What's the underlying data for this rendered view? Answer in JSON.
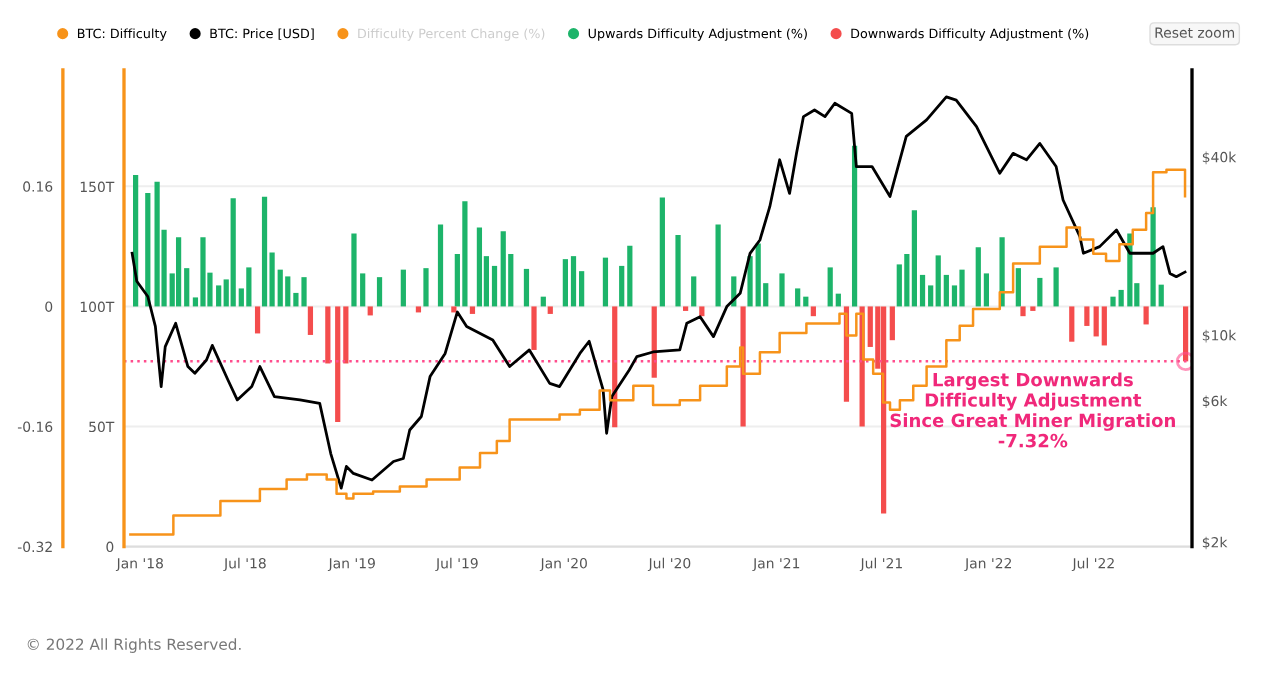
{
  "chart_data": {
    "type": "bar",
    "legend": "top",
    "grid": "y",
    "log": "y2",
    "xlim": [
      "2017-12-04",
      "2022-12-17"
    ],
    "xticks": [
      {
        "value": "2018-01-01",
        "label": "Jan '18"
      },
      {
        "value": "2018-07-01",
        "label": "Jul '18"
      },
      {
        "value": "2019-01-01",
        "label": "Jan '19"
      },
      {
        "value": "2019-07-01",
        "label": "Jul '19"
      },
      {
        "value": "2020-01-01",
        "label": "Jan '20"
      },
      {
        "value": "2020-07-01",
        "label": "Jul '20"
      },
      {
        "value": "2021-01-01",
        "label": "Jan '21"
      },
      {
        "value": "2021-07-01",
        "label": "Jul '21"
      },
      {
        "value": "2022-01-01",
        "label": "Jan '22"
      },
      {
        "value": "2022-07-01",
        "label": "Jul '22"
      }
    ],
    "ylim": [
      -0.32,
      0.315
    ],
    "yticks": [
      -0.32,
      -0.16,
      0,
      0.16
    ],
    "y2lim": [
      1930,
      78600
    ],
    "y2ticks": [
      {
        "value": 2000,
        "label": "$2k"
      },
      {
        "value": 6000,
        "label": "$6k"
      },
      {
        "value": 10000,
        "label": "$10k"
      },
      {
        "value": 40000,
        "label": "$40k"
      }
    ],
    "y3lim": [
      0,
      198.6
    ],
    "y3ticks": [
      {
        "value": 0,
        "label": "0"
      },
      {
        "value": 50,
        "label": "50T"
      },
      {
        "value": 100,
        "label": "100T"
      },
      {
        "value": 150,
        "label": "150T"
      }
    ],
    "series": [
      {
        "name": "BTC: Difficulty",
        "type": "step",
        "axis": "y3",
        "color": "#f7931a",
        "x": [
          "2017-12-15",
          "2018-02-27",
          "2018-05-19",
          "2018-07-26",
          "2018-09-10",
          "2018-10-15",
          "2018-11-18",
          "2018-12-05",
          "2018-12-22",
          "2019-01-03",
          "2019-02-06",
          "2019-03-24",
          "2019-05-09",
          "2019-07-05",
          "2019-08-09",
          "2019-09-07",
          "2019-09-29",
          "2019-11-09",
          "2019-12-24",
          "2020-01-28",
          "2020-03-02",
          "2020-03-20",
          "2020-04-29",
          "2020-06-02",
          "2020-07-18",
          "2020-08-22",
          "2020-10-07",
          "2020-10-30",
          "2020-11-04",
          "2020-12-03",
          "2021-01-06",
          "2021-02-21",
          "2021-04-19",
          "2021-05-01",
          "2021-05-18",
          "2021-05-30",
          "2021-06-16",
          "2021-07-03",
          "2021-07-15",
          "2021-08-01",
          "2021-08-24",
          "2021-09-16",
          "2021-10-20",
          "2021-11-12",
          "2021-12-05",
          "2022-01-20",
          "2022-02-12",
          "2022-03-30",
          "2022-05-15",
          "2022-06-07",
          "2022-06-30",
          "2022-07-22",
          "2022-08-14",
          "2022-09-06",
          "2022-09-29",
          "2022-10-11",
          "2022-11-03",
          "2022-11-26",
          "2022-12-05"
        ],
        "values": [
          5,
          13,
          19,
          24,
          28,
          30,
          28,
          22,
          20,
          22,
          23,
          25,
          28,
          33,
          39,
          44,
          53,
          53,
          55,
          57,
          65,
          61,
          67,
          59,
          61,
          67,
          75,
          83,
          72,
          81,
          89,
          93,
          97,
          88,
          97,
          78,
          72,
          60,
          57,
          61,
          67,
          75,
          86,
          92,
          99,
          106,
          118,
          125,
          133,
          128,
          122,
          119,
          126,
          132,
          139,
          156,
          157,
          157,
          146
        ]
      },
      {
        "name": "BTC: Price [USD]",
        "type": "line",
        "axis": "y2",
        "color": "#000000",
        "x": [
          "2017-12-18",
          "2017-12-26",
          "2018-01-14",
          "2018-01-27",
          "2018-02-06",
          "2018-02-13",
          "2018-03-03",
          "2018-03-24",
          "2018-04-05",
          "2018-04-25",
          "2018-05-05",
          "2018-06-01",
          "2018-06-17",
          "2018-07-12",
          "2018-07-26",
          "2018-08-20",
          "2018-10-03",
          "2018-11-06",
          "2018-11-25",
          "2018-12-13",
          "2018-12-22",
          "2019-01-03",
          "2019-02-04",
          "2019-03-13",
          "2019-03-30",
          "2019-04-10",
          "2019-04-30",
          "2019-05-15",
          "2019-06-10",
          "2019-07-01",
          "2019-07-17",
          "2019-08-31",
          "2019-09-29",
          "2019-11-02",
          "2019-12-07",
          "2019-12-24",
          "2020-01-28",
          "2020-02-13",
          "2020-03-08",
          "2020-03-14",
          "2020-03-23",
          "2020-04-22",
          "2020-05-05",
          "2020-06-02",
          "2020-07-18",
          "2020-07-30",
          "2020-08-22",
          "2020-09-14",
          "2020-10-07",
          "2020-10-30",
          "2020-11-16",
          "2020-12-03",
          "2020-12-20",
          "2021-01-06",
          "2021-01-23",
          "2021-02-04",
          "2021-02-16",
          "2021-03-07",
          "2021-03-25",
          "2021-04-11",
          "2021-05-10",
          "2021-05-18",
          "2021-06-14",
          "2021-07-15",
          "2021-08-12",
          "2021-09-16",
          "2021-10-20",
          "2021-11-06",
          "2021-12-11",
          "2022-01-20",
          "2022-02-12",
          "2022-03-07",
          "2022-03-30",
          "2022-04-27",
          "2022-05-09",
          "2022-06-07",
          "2022-06-13",
          "2022-07-11",
          "2022-08-09",
          "2022-09-01",
          "2022-10-11",
          "2022-10-28",
          "2022-11-09",
          "2022-11-20",
          "2022-12-05"
        ],
        "values": [
          18900,
          15200,
          13500,
          10700,
          6700,
          9140,
          10960,
          7830,
          7430,
          8240,
          9230,
          7050,
          6040,
          6700,
          7830,
          6200,
          6040,
          5880,
          3980,
          3040,
          3600,
          3410,
          3240,
          3740,
          3830,
          4780,
          5310,
          7240,
          8670,
          11970,
          10690,
          9630,
          7830,
          8910,
          6870,
          6700,
          8670,
          9530,
          6530,
          4660,
          6200,
          7620,
          8460,
          8770,
          8910,
          10960,
          11540,
          9880,
          12480,
          13840,
          18880,
          20950,
          27150,
          39100,
          30100,
          41100,
          54700,
          57600,
          54700,
          60700,
          56100,
          37100,
          37100,
          29400,
          46900,
          53300,
          63800,
          62200,
          50600,
          35200,
          41100,
          39100,
          44400,
          37100,
          28600,
          21500,
          18900,
          19900,
          22650,
          18900,
          18900,
          19900,
          16150,
          15750,
          16330
        ]
      },
      {
        "name": "Difficulty Percent Change (%)",
        "type": "line",
        "color": "#f7931a"
      },
      {
        "name": "Upwards Difficulty Adjustment (%)",
        "color": "#1db46a",
        "x": [
          "2017-12-24",
          "2018-01-14",
          "2018-01-30",
          "2018-02-11",
          "2018-02-25",
          "2018-03-08",
          "2018-03-22",
          "2018-04-06",
          "2018-04-19",
          "2018-05-01",
          "2018-05-16",
          "2018-05-29",
          "2018-06-10",
          "2018-06-24",
          "2018-07-07",
          "2018-08-03",
          "2018-08-16",
          "2018-08-30",
          "2018-09-12",
          "2018-09-26",
          "2018-10-10",
          "2019-01-04",
          "2019-01-19",
          "2019-02-17",
          "2019-03-30",
          "2019-05-08",
          "2019-06-02",
          "2019-07-01",
          "2019-07-14",
          "2019-08-08",
          "2019-08-20",
          "2019-09-03",
          "2019-09-18",
          "2019-10-01",
          "2019-10-28",
          "2019-11-26",
          "2020-01-03",
          "2020-01-17",
          "2020-01-31",
          "2020-03-12",
          "2020-04-09",
          "2020-04-23",
          "2020-06-18",
          "2020-07-15",
          "2020-08-11",
          "2020-09-22",
          "2020-10-19",
          "2020-11-16",
          "2020-11-30",
          "2020-12-13",
          "2021-01-10",
          "2021-02-06",
          "2021-02-20",
          "2021-04-03",
          "2021-04-17",
          "2021-05-15",
          "2021-07-31",
          "2021-08-13",
          "2021-08-26",
          "2021-09-09",
          "2021-09-23",
          "2021-10-06",
          "2021-10-20",
          "2021-11-03",
          "2021-11-16",
          "2021-12-14",
          "2021-12-28",
          "2022-01-24",
          "2022-02-21",
          "2022-03-30",
          "2022-04-27",
          "2022-08-03",
          "2022-08-17",
          "2022-09-01",
          "2022-09-13",
          "2022-10-11",
          "2022-10-25"
        ],
        "values": [
          0.175,
          0.151,
          0.166,
          0.102,
          0.044,
          0.092,
          0.051,
          0.012,
          0.092,
          0.045,
          0.028,
          0.036,
          0.144,
          0.024,
          0.052,
          0.146,
          0.072,
          0.049,
          0.04,
          0.018,
          0.039,
          0.097,
          0.044,
          0.039,
          0.049,
          0.051,
          0.109,
          0.07,
          0.14,
          0.105,
          0.067,
          0.054,
          0.1,
          0.07,
          0.05,
          0.013,
          0.063,
          0.067,
          0.047,
          0.065,
          0.054,
          0.081,
          0.145,
          0.095,
          0.04,
          0.109,
          0.04,
          0.067,
          0.084,
          0.031,
          0.044,
          0.024,
          0.013,
          0.052,
          0.017,
          0.214,
          0.056,
          0.07,
          0.128,
          0.042,
          0.028,
          0.068,
          0.042,
          0.028,
          0.049,
          0.079,
          0.044,
          0.092,
          0.051,
          0.038,
          0.052,
          0.013,
          0.022,
          0.097,
          0.031,
          0.132,
          0.029
        ]
      },
      {
        "name": "Downwards Difficulty Adjustment (%)",
        "color": "#f44d4d",
        "x": [
          "2018-07-22",
          "2018-10-21",
          "2018-11-20",
          "2018-12-07",
          "2018-12-21",
          "2019-02-01",
          "2019-04-25",
          "2019-06-25",
          "2019-07-27",
          "2019-11-10",
          "2019-12-08",
          "2020-03-28",
          "2020-06-04",
          "2020-07-28",
          "2020-08-25",
          "2020-11-04",
          "2021-03-05",
          "2021-05-01",
          "2021-05-28",
          "2021-06-11",
          "2021-06-24",
          "2021-07-04",
          "2021-07-19",
          "2022-03-01",
          "2022-03-18",
          "2022-05-24",
          "2022-06-19",
          "2022-07-05",
          "2022-07-19",
          "2022-09-29",
          "2022-12-06"
        ],
        "values": [
          -0.036,
          -0.038,
          -0.076,
          -0.154,
          -0.076,
          -0.012,
          -0.008,
          -0.008,
          -0.01,
          -0.058,
          -0.01,
          -0.161,
          -0.095,
          -0.006,
          -0.013,
          -0.16,
          -0.013,
          -0.127,
          -0.16,
          -0.054,
          -0.083,
          -0.276,
          -0.045,
          -0.013,
          -0.006,
          -0.047,
          -0.026,
          -0.04,
          -0.052,
          -0.024,
          -0.0732
        ]
      }
    ],
    "ref_lines": [
      {
        "axis": "y",
        "value": -0.0732,
        "color": "#ff4d8d",
        "line_style": "dotted"
      }
    ],
    "annotations": [
      {
        "text": "Largest Downwards\nDifficulty Adjustment\nSince Great Miner Migration\n-7.32%",
        "x": "2022-12-06",
        "y": -0.0732
      },
      "Reset zoom",
      "© 2022 All Rights Reserved."
    ]
  }
}
